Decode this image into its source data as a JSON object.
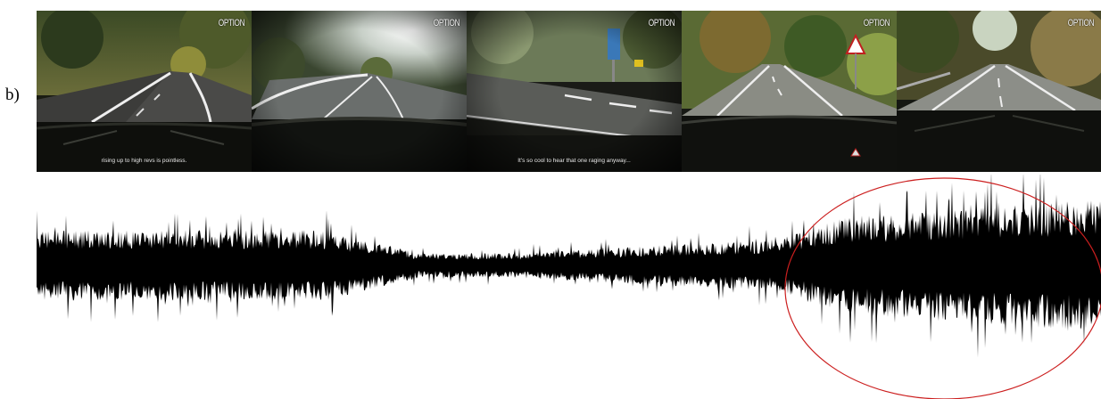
{
  "panel_label": "b)",
  "frames": [
    {
      "watermark": "OPTION",
      "subtitle": "rising up to high revs is pointless."
    },
    {
      "watermark": "OPTION",
      "subtitle": ""
    },
    {
      "watermark": "OPTION",
      "subtitle": "It's so cool to hear that one raging anyway..."
    },
    {
      "watermark": "OPTION",
      "subtitle": ""
    },
    {
      "watermark": "OPTION",
      "subtitle": ""
    }
  ],
  "waveform": {
    "description_color": "#000000",
    "highlight_color": "#cc1f1f"
  }
}
